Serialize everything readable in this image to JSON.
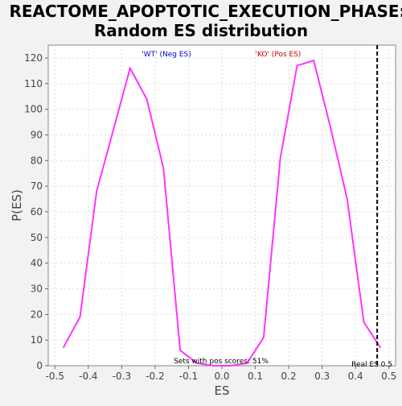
{
  "chart_data": {
    "type": "line",
    "title": "REACTOME_APOPTOTIC_EXECUTION_PHASE: Random ES distribution",
    "title_lines": [
      "REACTOME_APOPTOTIC_EXECUTION_PHASE:",
      "Random ES distribution"
    ],
    "xlabel": "ES",
    "ylabel": "P(ES)",
    "xlim": [
      -0.52,
      0.52
    ],
    "ylim": [
      0,
      125
    ],
    "x_ticks": [
      -0.5,
      -0.4,
      -0.3,
      -0.2,
      -0.1,
      0.0,
      0.1,
      0.2,
      0.3,
      0.4,
      0.5
    ],
    "x_tick_labels": [
      "-0.5",
      "-0.4",
      "-0.3",
      "-0.2",
      "-0.1",
      "0.0",
      "0.1",
      "0.2",
      "0.3",
      "0.4",
      "0.5"
    ],
    "y_ticks": [
      0,
      10,
      20,
      30,
      40,
      50,
      60,
      70,
      80,
      90,
      100,
      110,
      120
    ],
    "grid": true,
    "series": [
      {
        "color": "#ff33ff",
        "x": [
          -0.475,
          -0.425,
          -0.375,
          -0.325,
          -0.275,
          -0.225,
          -0.175,
          -0.125,
          -0.075,
          -0.025,
          0.025,
          0.075,
          0.125,
          0.175,
          0.225,
          0.275,
          0.325,
          0.375,
          0.425,
          0.475
        ],
        "y": [
          7,
          19,
          68,
          92,
          116,
          104,
          77,
          6,
          1,
          0,
          0,
          1,
          11,
          81,
          117,
          119,
          93,
          65,
          17,
          7
        ]
      }
    ],
    "annotations": {
      "neg": {
        "text": "'WT' (Neg ES)",
        "color": "#0000cc"
      },
      "pos": {
        "text": "'KO' (Pos ES)",
        "color": "#cc0000"
      },
      "pos_scores": "Sets with pos scores: 51%",
      "real_es": {
        "text": "Real ES 0.5",
        "x": 0.465
      }
    }
  }
}
